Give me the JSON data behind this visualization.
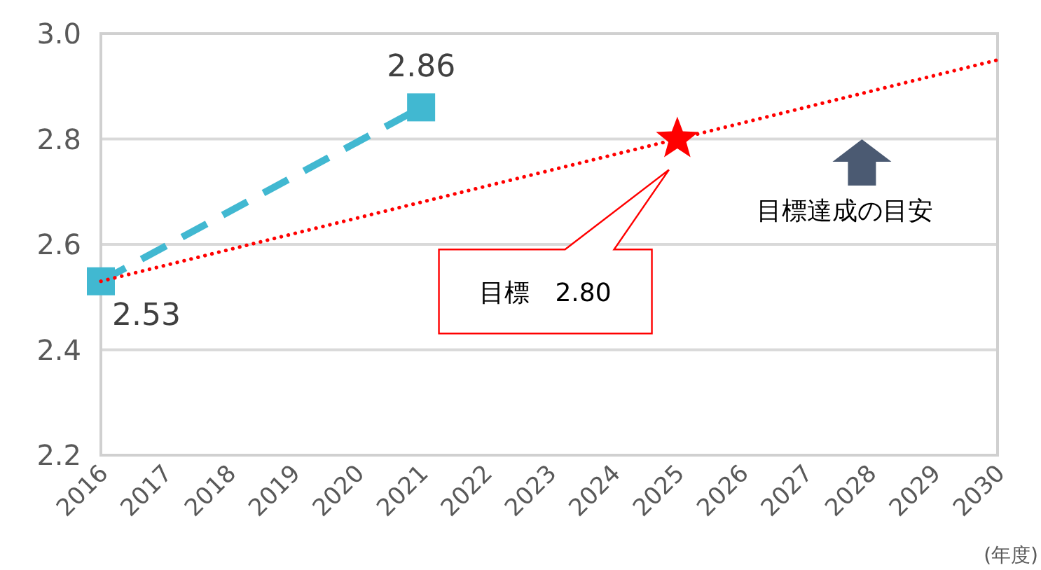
{
  "chart_data": {
    "type": "line",
    "xlabel": "(年度)",
    "xlim": [
      2016,
      2030
    ],
    "xticks": [
      2016,
      2017,
      2018,
      2019,
      2020,
      2021,
      2022,
      2023,
      2024,
      2025,
      2026,
      2027,
      2028,
      2029,
      2030
    ],
    "ylim": [
      2.2,
      3.0
    ],
    "yticks": [
      {
        "value": 2.2,
        "label": "2.2"
      },
      {
        "value": 2.4,
        "label": "2.4"
      },
      {
        "value": 2.6,
        "label": "2.6"
      },
      {
        "value": 2.8,
        "label": "2.8"
      },
      {
        "value": 3.0,
        "label": "3.0"
      }
    ],
    "grid": "y",
    "series": [
      {
        "type": "line",
        "color": "#41b8d1",
        "x": [
          2016,
          2021
        ],
        "values": [
          2.53,
          2.86
        ],
        "marker": "square",
        "line_style": "dashed",
        "value_labels": [
          "2.53",
          "2.86"
        ]
      },
      {
        "type": "line",
        "color": "#ff0000",
        "x": [
          2016,
          2030
        ],
        "values": [
          2.53,
          2.95
        ],
        "marker": "none",
        "line_style": "dotted"
      },
      {
        "type": "scatter",
        "color": "#ff0000",
        "x": [
          2025
        ],
        "values": [
          2.8
        ],
        "marker": "star"
      }
    ],
    "annotations": [
      "目標　2.80",
      "目標達成の目安"
    ]
  }
}
